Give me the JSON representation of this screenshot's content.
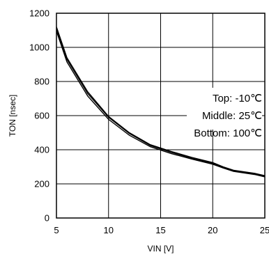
{
  "chart_data": {
    "type": "line",
    "title": "",
    "xlabel": "VIN [V]",
    "ylabel": "TON [nsec]",
    "xlim": [
      5,
      25
    ],
    "ylim": [
      0,
      1200
    ],
    "xticks": [
      5,
      10,
      15,
      20,
      25
    ],
    "yticks": [
      0,
      200,
      400,
      600,
      800,
      1000,
      1200
    ],
    "x_tick_labels": [
      "5",
      "10",
      "15",
      "20",
      "25"
    ],
    "y_tick_labels": [
      "0",
      "200",
      "400",
      "600",
      "800",
      "1000",
      "1200"
    ],
    "grid": true,
    "annotations": [
      "Top: -10℃",
      "Middle: 25℃",
      "Bottom: 100℃"
    ],
    "series": [
      {
        "values": [
          1120,
          940,
          740,
          595,
          500,
          430,
          390,
          355,
          325,
          300,
          280,
          262,
          248
        ]
      },
      {
        "values": [
          1110,
          930,
          730,
          590,
          495,
          425,
          385,
          350,
          320,
          297,
          277,
          259,
          245
        ]
      },
      {
        "values": [
          1095,
          915,
          715,
          578,
          485,
          418,
          378,
          345,
          315,
          293,
          273,
          255,
          241
        ]
      }
    ],
    "x": [
      5,
      6,
      8,
      10,
      12,
      14,
      16,
      18,
      20,
      21,
      22,
      24,
      25
    ],
    "colors": {
      "line": "#000000",
      "grid": "#000000",
      "frame": "#000000"
    }
  }
}
